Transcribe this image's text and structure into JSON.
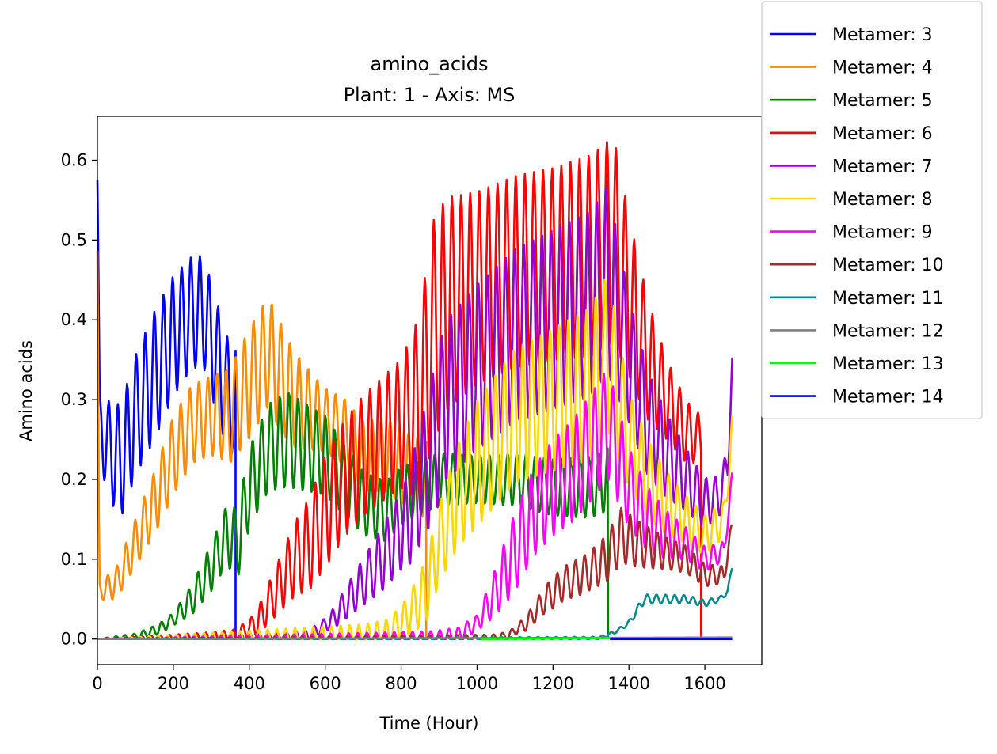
{
  "chart_data": {
    "type": "line",
    "title": [
      "amino_acids",
      "Plant: 1 - Axis: MS"
    ],
    "xlabel": "Time (Hour)",
    "ylabel": "Amino acids",
    "xlim": [
      0,
      1750
    ],
    "ylim": [
      -0.032,
      0.655
    ],
    "xticks": [
      0,
      200,
      400,
      600,
      800,
      1000,
      1200,
      1400,
      1600
    ],
    "yticks": [
      0.0,
      0.1,
      0.2,
      0.3,
      0.4,
      0.5,
      0.6
    ],
    "ytick_labels": [
      "0.0",
      "0.1",
      "0.2",
      "0.3",
      "0.4",
      "0.5",
      "0.6"
    ],
    "grid": false,
    "legend_position": "outside-top-right",
    "series": [
      {
        "name": "Metamer: 3",
        "color": "#0000ff",
        "start": 0,
        "end": 364,
        "drop_at_end": true,
        "points": [
          [
            0,
            0.575
          ],
          [
            6,
            0.26
          ],
          [
            30,
            0.24
          ],
          [
            60,
            0.22
          ],
          [
            100,
            0.28
          ],
          [
            150,
            0.33
          ],
          [
            200,
            0.38
          ],
          [
            250,
            0.41
          ],
          [
            280,
            0.41
          ],
          [
            310,
            0.36
          ],
          [
            340,
            0.31
          ],
          [
            360,
            0.3
          ]
        ],
        "amps": [
          [
            0,
            0.04
          ],
          [
            50,
            0.07
          ],
          [
            150,
            0.08
          ],
          [
            250,
            0.07
          ],
          [
            360,
            0.07
          ]
        ]
      },
      {
        "name": "Metamer: 4",
        "color": "#ff8c00",
        "start": 0,
        "end": 866,
        "drop_at_end": true,
        "points": [
          [
            0,
            0.48
          ],
          [
            5,
            0.06
          ],
          [
            50,
            0.07
          ],
          [
            100,
            0.12
          ],
          [
            150,
            0.17
          ],
          [
            200,
            0.23
          ],
          [
            250,
            0.27
          ],
          [
            300,
            0.28
          ],
          [
            350,
            0.28
          ],
          [
            400,
            0.32
          ],
          [
            450,
            0.36
          ],
          [
            480,
            0.33
          ],
          [
            520,
            0.3
          ],
          [
            580,
            0.28
          ],
          [
            650,
            0.26
          ],
          [
            700,
            0.23
          ],
          [
            760,
            0.23
          ],
          [
            820,
            0.21
          ],
          [
            866,
            0.2
          ]
        ],
        "amps": [
          [
            0,
            0.01
          ],
          [
            100,
            0.03
          ],
          [
            200,
            0.05
          ],
          [
            300,
            0.05
          ],
          [
            400,
            0.07
          ],
          [
            480,
            0.07
          ],
          [
            600,
            0.04
          ],
          [
            866,
            0.05
          ]
        ]
      },
      {
        "name": "Metamer: 5",
        "color": "#008000",
        "start": 0,
        "end": 1345,
        "drop_at_end": true,
        "points": [
          [
            0,
            0.0
          ],
          [
            100,
            0.003
          ],
          [
            160,
            0.012
          ],
          [
            200,
            0.025
          ],
          [
            250,
            0.05
          ],
          [
            300,
            0.09
          ],
          [
            340,
            0.13
          ],
          [
            370,
            0.12
          ],
          [
            400,
            0.19
          ],
          [
            450,
            0.24
          ],
          [
            500,
            0.25
          ],
          [
            550,
            0.24
          ],
          [
            600,
            0.23
          ],
          [
            650,
            0.2
          ],
          [
            700,
            0.17
          ],
          [
            760,
            0.16
          ],
          [
            800,
            0.18
          ],
          [
            900,
            0.2
          ],
          [
            1000,
            0.2
          ],
          [
            1100,
            0.2
          ],
          [
            1200,
            0.19
          ],
          [
            1300,
            0.19
          ],
          [
            1345,
            0.2
          ]
        ],
        "amps": [
          [
            0,
            0.0
          ],
          [
            200,
            0.008
          ],
          [
            300,
            0.03
          ],
          [
            400,
            0.05
          ],
          [
            500,
            0.06
          ],
          [
            700,
            0.04
          ],
          [
            1000,
            0.03
          ],
          [
            1345,
            0.04
          ]
        ]
      },
      {
        "name": "Metamer: 6",
        "color": "#ff0000",
        "start": 0,
        "end": 1590,
        "drop_at_end": true,
        "points": [
          [
            0,
            0.0
          ],
          [
            300,
            0.001
          ],
          [
            360,
            0.003
          ],
          [
            420,
            0.02
          ],
          [
            470,
            0.06
          ],
          [
            520,
            0.1
          ],
          [
            560,
            0.12
          ],
          [
            600,
            0.16
          ],
          [
            650,
            0.2
          ],
          [
            700,
            0.23
          ],
          [
            750,
            0.25
          ],
          [
            800,
            0.27
          ],
          [
            850,
            0.29
          ],
          [
            880,
            0.38
          ],
          [
            920,
            0.42
          ],
          [
            1000,
            0.44
          ],
          [
            1100,
            0.46
          ],
          [
            1200,
            0.47
          ],
          [
            1300,
            0.48
          ],
          [
            1360,
            0.5
          ],
          [
            1400,
            0.43
          ],
          [
            1450,
            0.35
          ],
          [
            1500,
            0.3
          ],
          [
            1550,
            0.26
          ],
          [
            1590,
            0.25
          ]
        ],
        "amps": [
          [
            0,
            0.0
          ],
          [
            400,
            0.01
          ],
          [
            500,
            0.04
          ],
          [
            600,
            0.07
          ],
          [
            800,
            0.08
          ],
          [
            880,
            0.14
          ],
          [
            1000,
            0.12
          ],
          [
            1200,
            0.12
          ],
          [
            1360,
            0.13
          ],
          [
            1400,
            0.1
          ],
          [
            1500,
            0.05
          ],
          [
            1590,
            0.03
          ]
        ]
      },
      {
        "name": "Metamer: 7",
        "color": "#9400d3",
        "start": 0,
        "end": 1672,
        "drop_at_end": false,
        "points": [
          [
            0,
            0.0
          ],
          [
            500,
            0.001
          ],
          [
            560,
            0.005
          ],
          [
            620,
            0.025
          ],
          [
            680,
            0.06
          ],
          [
            750,
            0.1
          ],
          [
            820,
            0.15
          ],
          [
            870,
            0.22
          ],
          [
            920,
            0.3
          ],
          [
            1000,
            0.34
          ],
          [
            1100,
            0.38
          ],
          [
            1200,
            0.4
          ],
          [
            1300,
            0.42
          ],
          [
            1345,
            0.45
          ],
          [
            1400,
            0.35
          ],
          [
            1450,
            0.27
          ],
          [
            1500,
            0.23
          ],
          [
            1550,
            0.2
          ],
          [
            1600,
            0.17
          ],
          [
            1640,
            0.18
          ],
          [
            1660,
            0.22
          ],
          [
            1672,
            0.34
          ]
        ],
        "amps": [
          [
            0,
            0.0
          ],
          [
            600,
            0.008
          ],
          [
            700,
            0.03
          ],
          [
            800,
            0.05
          ],
          [
            900,
            0.1
          ],
          [
            1100,
            0.11
          ],
          [
            1345,
            0.12
          ],
          [
            1400,
            0.08
          ],
          [
            1550,
            0.04
          ],
          [
            1672,
            0.02
          ]
        ]
      },
      {
        "name": "Metamer: 8",
        "color": "#ffd700",
        "start": 0,
        "end": 1672,
        "drop_at_end": false,
        "points": [
          [
            0,
            0.0
          ],
          [
            700,
            0.001
          ],
          [
            760,
            0.005
          ],
          [
            820,
            0.03
          ],
          [
            866,
            0.06
          ],
          [
            900,
            0.12
          ],
          [
            950,
            0.18
          ],
          [
            1000,
            0.22
          ],
          [
            1100,
            0.28
          ],
          [
            1200,
            0.3
          ],
          [
            1300,
            0.32
          ],
          [
            1345,
            0.36
          ],
          [
            1400,
            0.25
          ],
          [
            1450,
            0.2
          ],
          [
            1500,
            0.17
          ],
          [
            1550,
            0.15
          ],
          [
            1600,
            0.13
          ],
          [
            1650,
            0.15
          ],
          [
            1672,
            0.26
          ]
        ],
        "amps": [
          [
            0,
            0.0
          ],
          [
            800,
            0.02
          ],
          [
            900,
            0.05
          ],
          [
            1000,
            0.08
          ],
          [
            1200,
            0.09
          ],
          [
            1345,
            0.1
          ],
          [
            1400,
            0.06
          ],
          [
            1550,
            0.03
          ],
          [
            1672,
            0.02
          ]
        ]
      },
      {
        "name": "Metamer: 9",
        "color": "#ff00ff",
        "start": 0,
        "end": 1672,
        "drop_at_end": false,
        "points": [
          [
            0,
            0.0
          ],
          [
            880,
            0.001
          ],
          [
            950,
            0.005
          ],
          [
            1000,
            0.02
          ],
          [
            1050,
            0.06
          ],
          [
            1100,
            0.11
          ],
          [
            1150,
            0.16
          ],
          [
            1200,
            0.19
          ],
          [
            1250,
            0.21
          ],
          [
            1300,
            0.24
          ],
          [
            1345,
            0.27
          ],
          [
            1400,
            0.19
          ],
          [
            1450,
            0.15
          ],
          [
            1500,
            0.13
          ],
          [
            1550,
            0.12
          ],
          [
            1600,
            0.1
          ],
          [
            1650,
            0.11
          ],
          [
            1672,
            0.2
          ]
        ],
        "amps": [
          [
            0,
            0.0
          ],
          [
            1000,
            0.01
          ],
          [
            1100,
            0.05
          ],
          [
            1200,
            0.06
          ],
          [
            1345,
            0.07
          ],
          [
            1400,
            0.05
          ],
          [
            1550,
            0.02
          ],
          [
            1672,
            0.01
          ]
        ]
      },
      {
        "name": "Metamer: 10",
        "color": "#a52a2a",
        "start": 0,
        "end": 1672,
        "drop_at_end": false,
        "points": [
          [
            0,
            0.0
          ],
          [
            1040,
            0.001
          ],
          [
            1080,
            0.004
          ],
          [
            1130,
            0.02
          ],
          [
            1180,
            0.05
          ],
          [
            1230,
            0.07
          ],
          [
            1280,
            0.08
          ],
          [
            1340,
            0.1
          ],
          [
            1380,
            0.13
          ],
          [
            1420,
            0.12
          ],
          [
            1480,
            0.11
          ],
          [
            1550,
            0.1
          ],
          [
            1600,
            0.08
          ],
          [
            1650,
            0.08
          ],
          [
            1672,
            0.14
          ]
        ],
        "amps": [
          [
            0,
            0.0
          ],
          [
            1100,
            0.005
          ],
          [
            1200,
            0.02
          ],
          [
            1300,
            0.025
          ],
          [
            1380,
            0.035
          ],
          [
            1500,
            0.02
          ],
          [
            1672,
            0.01
          ]
        ]
      },
      {
        "name": "Metamer: 11",
        "color": "#008b8b",
        "start": 0,
        "end": 1672,
        "drop_at_end": false,
        "points": [
          [
            0,
            0.0
          ],
          [
            1320,
            0.001
          ],
          [
            1360,
            0.008
          ],
          [
            1400,
            0.02
          ],
          [
            1440,
            0.05
          ],
          [
            1500,
            0.05
          ],
          [
            1550,
            0.05
          ],
          [
            1600,
            0.045
          ],
          [
            1640,
            0.05
          ],
          [
            1660,
            0.06
          ],
          [
            1672,
            0.09
          ]
        ],
        "amps": [
          [
            0,
            0.0
          ],
          [
            1380,
            0.002
          ],
          [
            1440,
            0.006
          ],
          [
            1550,
            0.005
          ],
          [
            1672,
            0.003
          ]
        ]
      },
      {
        "name": "Metamer: 12",
        "color": "#808080",
        "start": 0,
        "end": 1672,
        "drop_at_end": false,
        "points": [
          [
            0,
            0.0
          ],
          [
            1672,
            0.002
          ]
        ],
        "amps": [
          [
            0,
            0.0
          ],
          [
            1672,
            0.0
          ]
        ]
      },
      {
        "name": "Metamer: 13",
        "color": "#00ff00",
        "start": 1010,
        "end": 1350,
        "drop_at_end": false,
        "points": [
          [
            1010,
            0.0
          ],
          [
            1350,
            0.001
          ]
        ],
        "amps": [
          [
            1010,
            0.0
          ],
          [
            1350,
            0.0
          ]
        ]
      },
      {
        "name": "Metamer: 14",
        "color": "#0000ff",
        "start": 1350,
        "end": 1672,
        "drop_at_end": false,
        "points": [
          [
            1350,
            0.0
          ],
          [
            1672,
            0.0
          ]
        ],
        "amps": [
          [
            1350,
            0.0
          ],
          [
            1672,
            0.0
          ]
        ]
      }
    ]
  }
}
